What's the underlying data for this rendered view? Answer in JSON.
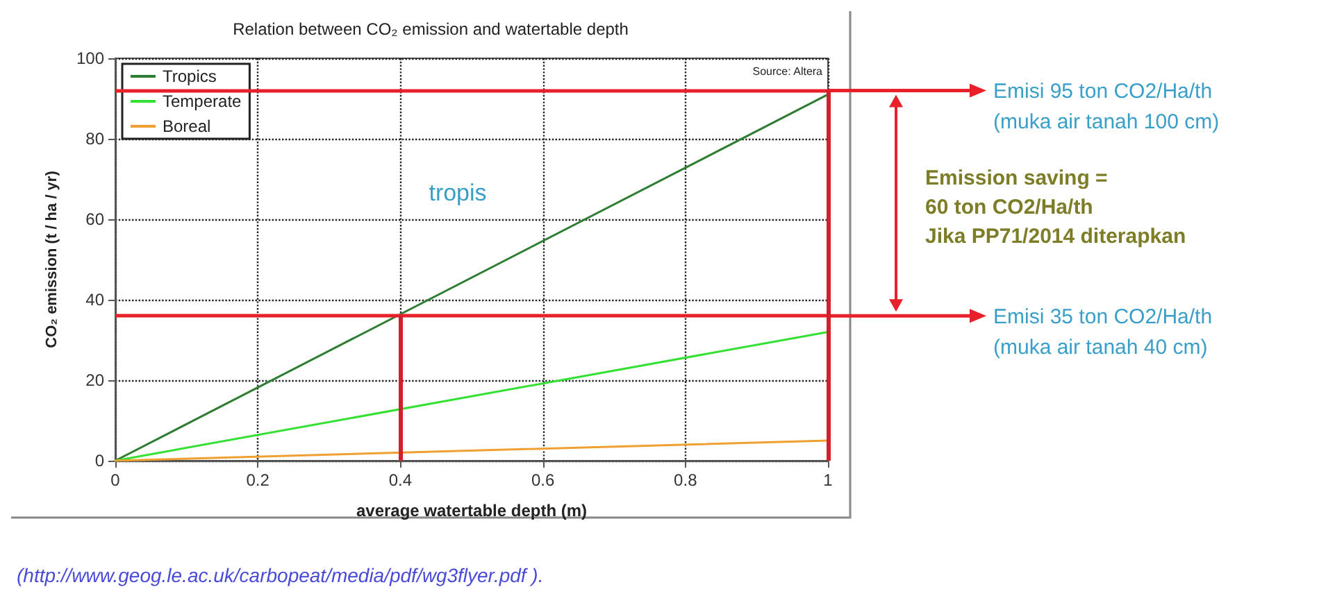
{
  "chart_data": {
    "type": "line",
    "title": "Relation between CO₂ emission and watertable depth",
    "xlabel": "average watertable depth (m)",
    "ylabel": "CO₂ emission (t / ha / yr)",
    "x": [
      0,
      1
    ],
    "series": [
      {
        "name": "Tropics",
        "color": "#2e7d32",
        "values": [
          0,
          91
        ]
      },
      {
        "name": "Temperate",
        "color": "#33e033",
        "values": [
          0,
          32
        ]
      },
      {
        "name": "Boreal",
        "color": "#f0a030",
        "values": [
          0,
          5
        ]
      }
    ],
    "xlim": [
      0,
      1
    ],
    "xticks": [
      0,
      0.2,
      0.4,
      0.6,
      0.8,
      1
    ],
    "ylim": [
      0,
      100
    ],
    "yticks": [
      0,
      20,
      40,
      60,
      80,
      100
    ],
    "grid": true,
    "legend": "top left",
    "marker": "none",
    "line_style": "solid",
    "ref_lines": [
      {
        "axis": "y",
        "value": 36,
        "color": "#e8202a"
      },
      {
        "axis": "y",
        "value": 92,
        "color": "#e8202a"
      },
      {
        "axis": "x",
        "value": 0.4,
        "color": "#d0202a"
      },
      {
        "axis": "x",
        "value": 1,
        "color": "#d0202a"
      }
    ],
    "annotations": [
      "Source: Altera",
      "tropis",
      "Emisi 95 ton CO2/Ha/th\n(muka air tanah 100 cm)",
      "Emission saving =\n60 ton CO2/Ha/th\nJika PP71/2014 diterapkan",
      "Emisi 35 ton CO2/Ha/th\n(muka air tanah 40 cm)",
      "(http://www.geog.le.ac.uk/carbopeat/media/pdf/wg3flyer.pdf )."
    ]
  }
}
